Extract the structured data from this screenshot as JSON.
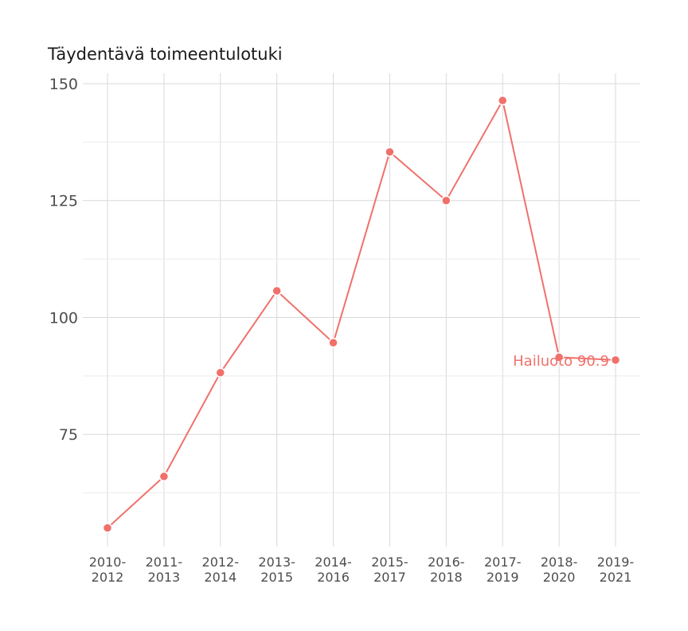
{
  "chart_data": {
    "type": "line",
    "title": "Täydentävä toimeentulotuki",
    "xlabel": "",
    "ylabel": "",
    "categories": [
      "2010-2012",
      "2011-2013",
      "2012-2014",
      "2013-2015",
      "2014-2016",
      "2015-2017",
      "2016-2018",
      "2017-2019",
      "2018-2020",
      "2019-2021"
    ],
    "category_lines": [
      [
        "2010-",
        "2012"
      ],
      [
        "2011-",
        "2013"
      ],
      [
        "2012-",
        "2014"
      ],
      [
        "2013-",
        "2015"
      ],
      [
        "2014-",
        "2016"
      ],
      [
        "2015-",
        "2017"
      ],
      [
        "2016-",
        "2018"
      ],
      [
        "2017-",
        "2019"
      ],
      [
        "2018-",
        "2020"
      ],
      [
        "2019-",
        "2021"
      ]
    ],
    "series": [
      {
        "name": "Hailuoto",
        "color": "#f0716b",
        "values": [
          55.0,
          66.0,
          88.2,
          105.7,
          94.6,
          135.4,
          125.0,
          146.4,
          91.5,
          90.9
        ]
      }
    ],
    "annotation": "Hailuoto 90.9",
    "ylim": [
      51.7,
      150
    ],
    "yticks": [
      75,
      100,
      125,
      150
    ],
    "grid": true,
    "legend": "none"
  }
}
